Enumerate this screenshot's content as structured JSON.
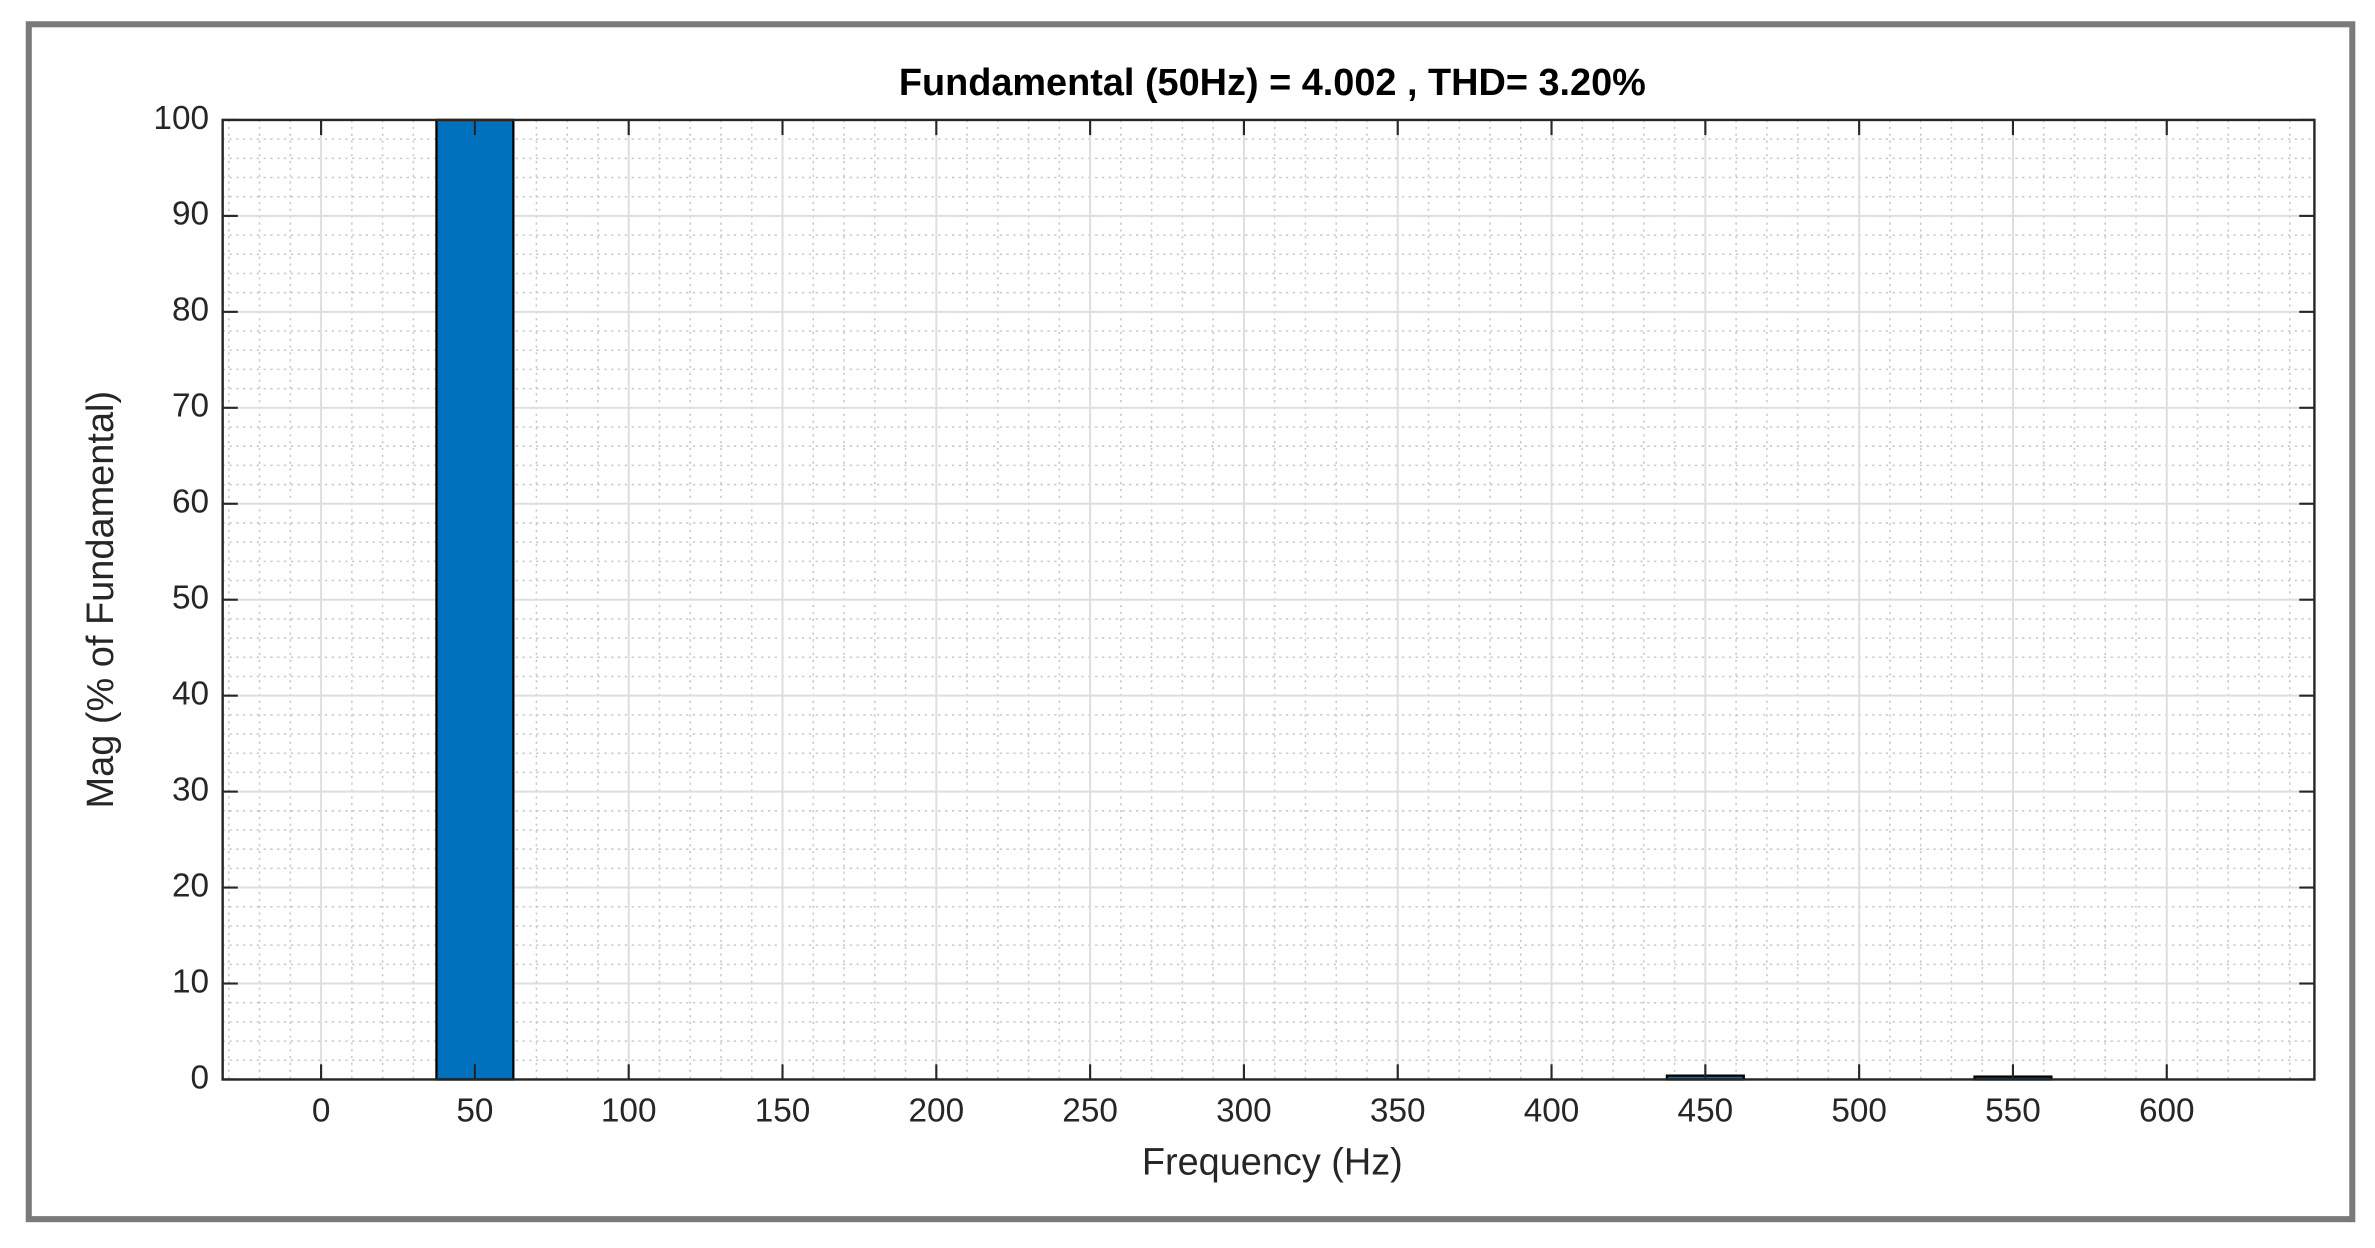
{
  "chart_data": {
    "type": "bar",
    "title": "Fundamental (50Hz) = 4.002 , THD= 3.20%",
    "x_label": "Frequency (Hz)",
    "y_label": "Mag (% of Fundamental)",
    "x": [
      50,
      450,
      550
    ],
    "values": [
      100,
      0.4,
      0.3
    ],
    "color": "#0072bd",
    "xlim": [
      -32,
      648
    ],
    "xticks": [
      0,
      50,
      100,
      150,
      200,
      250,
      300,
      350,
      400,
      450,
      500,
      550,
      600
    ],
    "ylim": [
      0,
      100
    ],
    "yticks": [
      0,
      10,
      20,
      30,
      40,
      50,
      60,
      70,
      80,
      90,
      100
    ],
    "grid": true,
    "minor_grid": true
  }
}
